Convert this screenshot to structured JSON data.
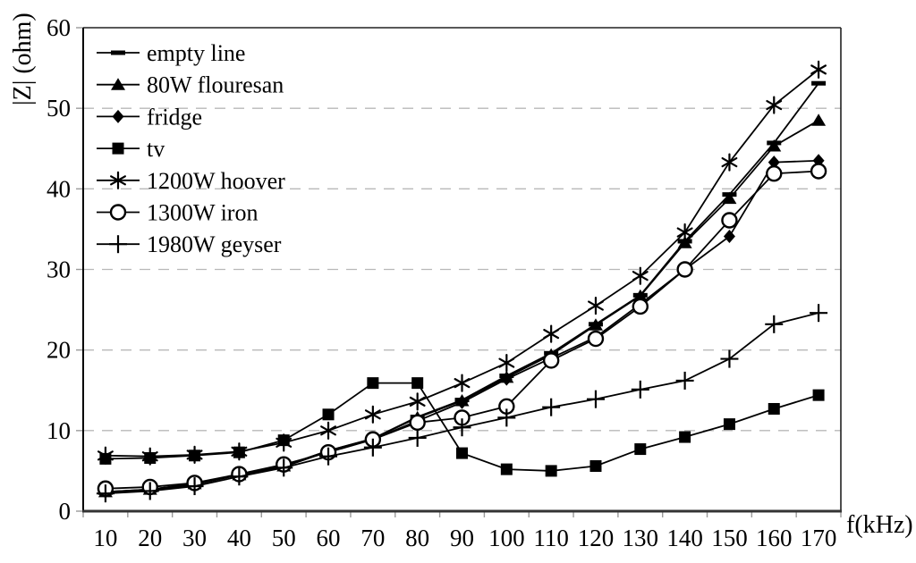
{
  "figure": {
    "background": "#ffffff",
    "line_color": "#000000",
    "grid_color": "#b8b8b8",
    "tick_color": "#9a9a9a"
  },
  "chart_data": {
    "type": "line",
    "title": "",
    "xlabel": "f(kHz)",
    "ylabel": "|Z| (ohm)",
    "x": [
      10,
      20,
      30,
      40,
      50,
      60,
      70,
      80,
      90,
      100,
      110,
      120,
      130,
      140,
      150,
      160,
      170
    ],
    "ylim": [
      0,
      60
    ],
    "yticks": [
      0,
      10,
      20,
      30,
      40,
      50,
      60
    ],
    "grid": "horizontal-dashed",
    "legend_position": "top-left-inside",
    "series": [
      {
        "name": "empty line",
        "marker": "dash",
        "values": [
          2.3,
          2.6,
          3.3,
          4.5,
          5.6,
          7.5,
          9.0,
          11.7,
          13.8,
          16.8,
          19.6,
          23.2,
          26.8,
          33.5,
          39.3,
          45.7,
          53.1
        ]
      },
      {
        "name": "80W flouresan",
        "marker": "triangle",
        "values": [
          2.4,
          2.7,
          3.4,
          4.5,
          5.6,
          7.5,
          9.0,
          11.6,
          13.7,
          16.6,
          19.4,
          23.1,
          26.7,
          33.3,
          38.8,
          45.3,
          48.5
        ]
      },
      {
        "name": "fridge",
        "marker": "diamond",
        "values": [
          2.4,
          2.7,
          3.4,
          4.5,
          5.5,
          7.4,
          8.9,
          11.2,
          13.5,
          16.4,
          19.0,
          21.6,
          25.7,
          30.0,
          34.1,
          43.3,
          43.5
        ]
      },
      {
        "name": "tv",
        "marker": "square",
        "values": [
          6.5,
          6.6,
          6.9,
          7.3,
          8.8,
          12.0,
          15.9,
          15.9,
          7.2,
          5.2,
          5.0,
          5.6,
          7.7,
          9.2,
          10.8,
          12.7,
          14.4
        ]
      },
      {
        "name": "1200W hoover",
        "marker": "asterisk",
        "values": [
          6.9,
          6.8,
          7.0,
          7.4,
          8.5,
          10.0,
          12.0,
          13.6,
          15.9,
          18.4,
          22.0,
          25.5,
          29.2,
          34.6,
          43.3,
          50.4,
          54.8
        ]
      },
      {
        "name": "1300W iron",
        "marker": "circle-open",
        "values": [
          2.8,
          3.0,
          3.5,
          4.6,
          5.8,
          7.3,
          8.9,
          11.0,
          11.6,
          13.0,
          18.7,
          21.4,
          25.4,
          30.0,
          36.1,
          41.9,
          42.2
        ]
      },
      {
        "name": "1980W geyser",
        "marker": "plus",
        "values": [
          2.2,
          2.5,
          3.1,
          4.3,
          5.4,
          6.8,
          7.9,
          9.1,
          10.4,
          11.6,
          12.9,
          13.9,
          15.1,
          16.2,
          18.9,
          23.2,
          24.6
        ]
      }
    ]
  }
}
